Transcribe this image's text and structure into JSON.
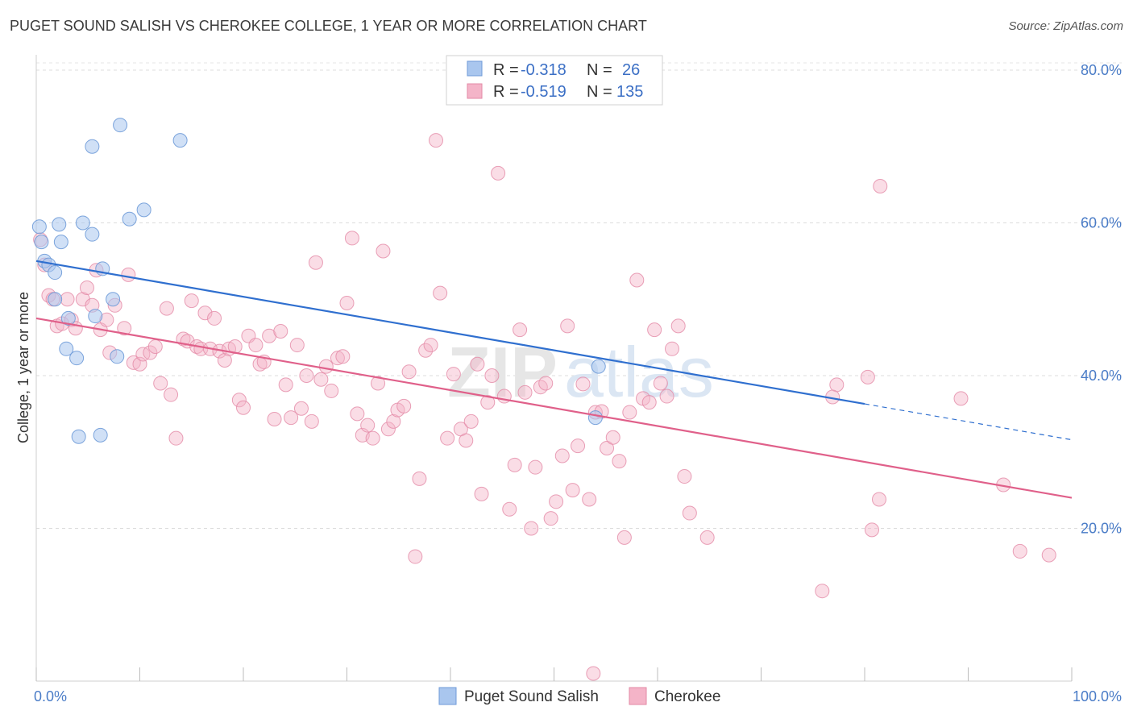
{
  "title": "PUGET SOUND SALISH VS CHEROKEE COLLEGE, 1 YEAR OR MORE CORRELATION CHART",
  "source": "Source: ZipAtlas.com",
  "watermark": "ZIPatlas",
  "colors": {
    "blue_fill": "#a9c6ee",
    "blue_line": "#2f6fcf",
    "pink_fill": "#f4b4c8",
    "pink_line": "#e0608a",
    "tick_text": "#4a7cc7"
  },
  "legend": {
    "rows": [
      {
        "r_label": "R =",
        "r_value": "-0.318",
        "n_label": "N =",
        "n_value": "26"
      },
      {
        "r_label": "R =",
        "r_value": "-0.519",
        "n_label": "N =",
        "n_value": "135"
      }
    ]
  },
  "chart_data": {
    "type": "scatter",
    "xlabel": "",
    "ylabel": "College, 1 year or more",
    "x_tick_labels": [
      "0.0%",
      "100.0%"
    ],
    "y_tick_labels": [
      "20.0%",
      "40.0%",
      "60.0%",
      "80.0%"
    ],
    "xlim": [
      0,
      100
    ],
    "ylim": [
      0,
      82
    ],
    "grid": true,
    "legend_position": "top-center",
    "series": [
      {
        "name": "Puget Sound Salish",
        "color": "#a9c6ee",
        "trend": {
          "x0": 0,
          "y0": 55.0,
          "x1": 80,
          "y1": 36.3,
          "dashed_to_x": 100,
          "dashed_to_y": 31.6
        },
        "points": [
          [
            0.3,
            59.5
          ],
          [
            0.5,
            57.5
          ],
          [
            0.8,
            55.0
          ],
          [
            1.2,
            54.5
          ],
          [
            1.8,
            53.5
          ],
          [
            2.2,
            59.8
          ],
          [
            2.4,
            57.5
          ],
          [
            1.8,
            50.0
          ],
          [
            3.1,
            47.5
          ],
          [
            2.9,
            43.5
          ],
          [
            3.9,
            42.3
          ],
          [
            4.5,
            60.0
          ],
          [
            5.4,
            58.5
          ],
          [
            5.4,
            70.0
          ],
          [
            5.7,
            47.8
          ],
          [
            6.4,
            54.0
          ],
          [
            7.4,
            50.0
          ],
          [
            7.8,
            42.5
          ],
          [
            8.1,
            72.8
          ],
          [
            9.0,
            60.5
          ],
          [
            10.4,
            61.7
          ],
          [
            13.9,
            70.8
          ],
          [
            4.1,
            32.0
          ],
          [
            6.2,
            32.2
          ],
          [
            54.3,
            41.2
          ],
          [
            54.0,
            34.5
          ]
        ]
      },
      {
        "name": "Cherokee",
        "color": "#f4b4c8",
        "trend": {
          "x0": 0,
          "y0": 47.5,
          "x1": 100,
          "y1": 24.0
        },
        "points": [
          [
            0.4,
            57.8
          ],
          [
            0.8,
            54.5
          ],
          [
            1.2,
            50.5
          ],
          [
            1.6,
            50.0
          ],
          [
            2.0,
            46.5
          ],
          [
            2.5,
            46.8
          ],
          [
            3.0,
            50.0
          ],
          [
            3.4,
            47.3
          ],
          [
            3.8,
            46.2
          ],
          [
            4.5,
            50.0
          ],
          [
            4.9,
            51.5
          ],
          [
            5.4,
            49.2
          ],
          [
            5.8,
            53.8
          ],
          [
            6.2,
            46.0
          ],
          [
            6.8,
            47.3
          ],
          [
            7.1,
            43.0
          ],
          [
            7.6,
            49.2
          ],
          [
            8.5,
            46.2
          ],
          [
            8.9,
            53.2
          ],
          [
            9.4,
            41.7
          ],
          [
            10.0,
            41.5
          ],
          [
            10.3,
            42.8
          ],
          [
            11.0,
            43.0
          ],
          [
            11.5,
            43.8
          ],
          [
            12.0,
            39.0
          ],
          [
            12.6,
            48.8
          ],
          [
            13.0,
            37.5
          ],
          [
            13.5,
            31.8
          ],
          [
            14.2,
            44.8
          ],
          [
            14.6,
            44.5
          ],
          [
            15.0,
            49.8
          ],
          [
            15.5,
            43.8
          ],
          [
            15.9,
            43.5
          ],
          [
            16.3,
            48.2
          ],
          [
            16.8,
            43.5
          ],
          [
            17.2,
            47.5
          ],
          [
            17.7,
            43.2
          ],
          [
            18.2,
            42.0
          ],
          [
            18.6,
            43.5
          ],
          [
            19.2,
            43.8
          ],
          [
            19.6,
            36.8
          ],
          [
            20.0,
            35.8
          ],
          [
            20.5,
            45.2
          ],
          [
            21.2,
            44.0
          ],
          [
            21.6,
            41.5
          ],
          [
            22.0,
            41.8
          ],
          [
            22.5,
            45.2
          ],
          [
            23.0,
            34.3
          ],
          [
            23.6,
            45.8
          ],
          [
            24.1,
            38.8
          ],
          [
            24.6,
            34.5
          ],
          [
            25.2,
            44.0
          ],
          [
            25.6,
            35.7
          ],
          [
            26.1,
            40.0
          ],
          [
            26.6,
            34.0
          ],
          [
            27.0,
            54.8
          ],
          [
            27.5,
            39.5
          ],
          [
            28.0,
            41.2
          ],
          [
            28.5,
            38.0
          ],
          [
            29.1,
            42.3
          ],
          [
            29.6,
            42.5
          ],
          [
            30.0,
            49.5
          ],
          [
            30.5,
            58.0
          ],
          [
            31.0,
            35.0
          ],
          [
            31.5,
            32.2
          ],
          [
            32.0,
            33.5
          ],
          [
            32.5,
            31.8
          ],
          [
            33.0,
            39.0
          ],
          [
            33.5,
            56.3
          ],
          [
            34.0,
            33.0
          ],
          [
            34.5,
            34.0
          ],
          [
            34.9,
            35.5
          ],
          [
            35.5,
            36.0
          ],
          [
            36.0,
            40.5
          ],
          [
            36.6,
            16.3
          ],
          [
            37.0,
            26.5
          ],
          [
            37.6,
            43.3
          ],
          [
            38.1,
            44.0
          ],
          [
            38.6,
            70.8
          ],
          [
            39.0,
            50.8
          ],
          [
            39.7,
            31.8
          ],
          [
            40.3,
            40.2
          ],
          [
            41.0,
            33.0
          ],
          [
            41.5,
            31.5
          ],
          [
            42.0,
            34.0
          ],
          [
            42.6,
            41.5
          ],
          [
            43.0,
            24.5
          ],
          [
            43.6,
            36.5
          ],
          [
            44.0,
            40.0
          ],
          [
            44.6,
            66.5
          ],
          [
            45.2,
            37.3
          ],
          [
            45.7,
            22.5
          ],
          [
            46.2,
            28.3
          ],
          [
            46.7,
            46.0
          ],
          [
            47.2,
            37.8
          ],
          [
            47.8,
            20.0
          ],
          [
            48.2,
            28.0
          ],
          [
            48.7,
            38.5
          ],
          [
            49.2,
            39.0
          ],
          [
            49.7,
            21.3
          ],
          [
            50.2,
            23.5
          ],
          [
            50.8,
            29.5
          ],
          [
            51.3,
            46.5
          ],
          [
            51.8,
            25.0
          ],
          [
            52.3,
            30.8
          ],
          [
            52.8,
            38.9
          ],
          [
            53.4,
            23.8
          ],
          [
            54.0,
            35.2
          ],
          [
            54.6,
            35.3
          ],
          [
            55.1,
            30.5
          ],
          [
            55.7,
            31.9
          ],
          [
            56.3,
            28.8
          ],
          [
            56.8,
            18.8
          ],
          [
            57.3,
            35.2
          ],
          [
            58.0,
            52.5
          ],
          [
            58.6,
            37.0
          ],
          [
            59.2,
            36.5
          ],
          [
            59.7,
            46.0
          ],
          [
            60.3,
            39.0
          ],
          [
            60.9,
            37.3
          ],
          [
            61.4,
            43.5
          ],
          [
            62.0,
            46.5
          ],
          [
            62.6,
            26.8
          ],
          [
            63.1,
            22.0
          ],
          [
            64.8,
            18.8
          ],
          [
            75.9,
            11.8
          ],
          [
            77.3,
            38.8
          ],
          [
            76.9,
            37.2
          ],
          [
            80.3,
            39.8
          ],
          [
            80.7,
            19.8
          ],
          [
            81.4,
            23.8
          ],
          [
            81.5,
            64.8
          ],
          [
            89.3,
            37.0
          ],
          [
            93.4,
            25.7
          ],
          [
            95.0,
            17.0
          ],
          [
            97.8,
            16.5
          ],
          [
            53.8,
            1.0
          ]
        ]
      }
    ]
  }
}
